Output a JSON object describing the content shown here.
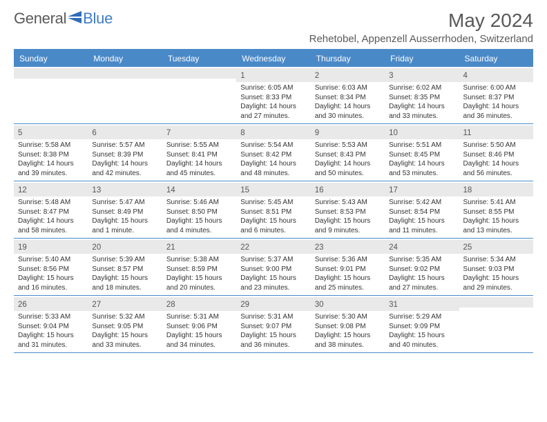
{
  "brand": {
    "part1": "General",
    "part2": "Blue"
  },
  "title": "May 2024",
  "location": "Rehetobel, Appenzell Ausserrhoden, Switzerland",
  "colors": {
    "accent": "#4a89c8",
    "headerText": "#ffffff",
    "daynumBg": "#e9e9e9",
    "bodyText": "#333333",
    "mutedText": "#595959"
  },
  "dayNames": [
    "Sunday",
    "Monday",
    "Tuesday",
    "Wednesday",
    "Thursday",
    "Friday",
    "Saturday"
  ],
  "weeks": [
    [
      {
        "day": "",
        "sunrise": "",
        "sunset": "",
        "daylight1": "",
        "daylight2": ""
      },
      {
        "day": "",
        "sunrise": "",
        "sunset": "",
        "daylight1": "",
        "daylight2": ""
      },
      {
        "day": "",
        "sunrise": "",
        "sunset": "",
        "daylight1": "",
        "daylight2": ""
      },
      {
        "day": "1",
        "sunrise": "Sunrise: 6:05 AM",
        "sunset": "Sunset: 8:33 PM",
        "daylight1": "Daylight: 14 hours",
        "daylight2": "and 27 minutes."
      },
      {
        "day": "2",
        "sunrise": "Sunrise: 6:03 AM",
        "sunset": "Sunset: 8:34 PM",
        "daylight1": "Daylight: 14 hours",
        "daylight2": "and 30 minutes."
      },
      {
        "day": "3",
        "sunrise": "Sunrise: 6:02 AM",
        "sunset": "Sunset: 8:35 PM",
        "daylight1": "Daylight: 14 hours",
        "daylight2": "and 33 minutes."
      },
      {
        "day": "4",
        "sunrise": "Sunrise: 6:00 AM",
        "sunset": "Sunset: 8:37 PM",
        "daylight1": "Daylight: 14 hours",
        "daylight2": "and 36 minutes."
      }
    ],
    [
      {
        "day": "5",
        "sunrise": "Sunrise: 5:58 AM",
        "sunset": "Sunset: 8:38 PM",
        "daylight1": "Daylight: 14 hours",
        "daylight2": "and 39 minutes."
      },
      {
        "day": "6",
        "sunrise": "Sunrise: 5:57 AM",
        "sunset": "Sunset: 8:39 PM",
        "daylight1": "Daylight: 14 hours",
        "daylight2": "and 42 minutes."
      },
      {
        "day": "7",
        "sunrise": "Sunrise: 5:55 AM",
        "sunset": "Sunset: 8:41 PM",
        "daylight1": "Daylight: 14 hours",
        "daylight2": "and 45 minutes."
      },
      {
        "day": "8",
        "sunrise": "Sunrise: 5:54 AM",
        "sunset": "Sunset: 8:42 PM",
        "daylight1": "Daylight: 14 hours",
        "daylight2": "and 48 minutes."
      },
      {
        "day": "9",
        "sunrise": "Sunrise: 5:53 AM",
        "sunset": "Sunset: 8:43 PM",
        "daylight1": "Daylight: 14 hours",
        "daylight2": "and 50 minutes."
      },
      {
        "day": "10",
        "sunrise": "Sunrise: 5:51 AM",
        "sunset": "Sunset: 8:45 PM",
        "daylight1": "Daylight: 14 hours",
        "daylight2": "and 53 minutes."
      },
      {
        "day": "11",
        "sunrise": "Sunrise: 5:50 AM",
        "sunset": "Sunset: 8:46 PM",
        "daylight1": "Daylight: 14 hours",
        "daylight2": "and 56 minutes."
      }
    ],
    [
      {
        "day": "12",
        "sunrise": "Sunrise: 5:48 AM",
        "sunset": "Sunset: 8:47 PM",
        "daylight1": "Daylight: 14 hours",
        "daylight2": "and 58 minutes."
      },
      {
        "day": "13",
        "sunrise": "Sunrise: 5:47 AM",
        "sunset": "Sunset: 8:49 PM",
        "daylight1": "Daylight: 15 hours",
        "daylight2": "and 1 minute."
      },
      {
        "day": "14",
        "sunrise": "Sunrise: 5:46 AM",
        "sunset": "Sunset: 8:50 PM",
        "daylight1": "Daylight: 15 hours",
        "daylight2": "and 4 minutes."
      },
      {
        "day": "15",
        "sunrise": "Sunrise: 5:45 AM",
        "sunset": "Sunset: 8:51 PM",
        "daylight1": "Daylight: 15 hours",
        "daylight2": "and 6 minutes."
      },
      {
        "day": "16",
        "sunrise": "Sunrise: 5:43 AM",
        "sunset": "Sunset: 8:53 PM",
        "daylight1": "Daylight: 15 hours",
        "daylight2": "and 9 minutes."
      },
      {
        "day": "17",
        "sunrise": "Sunrise: 5:42 AM",
        "sunset": "Sunset: 8:54 PM",
        "daylight1": "Daylight: 15 hours",
        "daylight2": "and 11 minutes."
      },
      {
        "day": "18",
        "sunrise": "Sunrise: 5:41 AM",
        "sunset": "Sunset: 8:55 PM",
        "daylight1": "Daylight: 15 hours",
        "daylight2": "and 13 minutes."
      }
    ],
    [
      {
        "day": "19",
        "sunrise": "Sunrise: 5:40 AM",
        "sunset": "Sunset: 8:56 PM",
        "daylight1": "Daylight: 15 hours",
        "daylight2": "and 16 minutes."
      },
      {
        "day": "20",
        "sunrise": "Sunrise: 5:39 AM",
        "sunset": "Sunset: 8:57 PM",
        "daylight1": "Daylight: 15 hours",
        "daylight2": "and 18 minutes."
      },
      {
        "day": "21",
        "sunrise": "Sunrise: 5:38 AM",
        "sunset": "Sunset: 8:59 PM",
        "daylight1": "Daylight: 15 hours",
        "daylight2": "and 20 minutes."
      },
      {
        "day": "22",
        "sunrise": "Sunrise: 5:37 AM",
        "sunset": "Sunset: 9:00 PM",
        "daylight1": "Daylight: 15 hours",
        "daylight2": "and 23 minutes."
      },
      {
        "day": "23",
        "sunrise": "Sunrise: 5:36 AM",
        "sunset": "Sunset: 9:01 PM",
        "daylight1": "Daylight: 15 hours",
        "daylight2": "and 25 minutes."
      },
      {
        "day": "24",
        "sunrise": "Sunrise: 5:35 AM",
        "sunset": "Sunset: 9:02 PM",
        "daylight1": "Daylight: 15 hours",
        "daylight2": "and 27 minutes."
      },
      {
        "day": "25",
        "sunrise": "Sunrise: 5:34 AM",
        "sunset": "Sunset: 9:03 PM",
        "daylight1": "Daylight: 15 hours",
        "daylight2": "and 29 minutes."
      }
    ],
    [
      {
        "day": "26",
        "sunrise": "Sunrise: 5:33 AM",
        "sunset": "Sunset: 9:04 PM",
        "daylight1": "Daylight: 15 hours",
        "daylight2": "and 31 minutes."
      },
      {
        "day": "27",
        "sunrise": "Sunrise: 5:32 AM",
        "sunset": "Sunset: 9:05 PM",
        "daylight1": "Daylight: 15 hours",
        "daylight2": "and 33 minutes."
      },
      {
        "day": "28",
        "sunrise": "Sunrise: 5:31 AM",
        "sunset": "Sunset: 9:06 PM",
        "daylight1": "Daylight: 15 hours",
        "daylight2": "and 34 minutes."
      },
      {
        "day": "29",
        "sunrise": "Sunrise: 5:31 AM",
        "sunset": "Sunset: 9:07 PM",
        "daylight1": "Daylight: 15 hours",
        "daylight2": "and 36 minutes."
      },
      {
        "day": "30",
        "sunrise": "Sunrise: 5:30 AM",
        "sunset": "Sunset: 9:08 PM",
        "daylight1": "Daylight: 15 hours",
        "daylight2": "and 38 minutes."
      },
      {
        "day": "31",
        "sunrise": "Sunrise: 5:29 AM",
        "sunset": "Sunset: 9:09 PM",
        "daylight1": "Daylight: 15 hours",
        "daylight2": "and 40 minutes."
      },
      {
        "day": "",
        "sunrise": "",
        "sunset": "",
        "daylight1": "",
        "daylight2": ""
      }
    ]
  ]
}
